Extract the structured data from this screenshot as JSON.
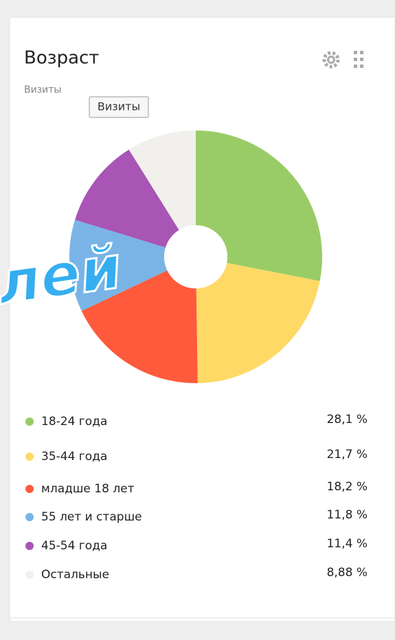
{
  "chart_data": {
    "type": "pie",
    "title": "Возраст",
    "subtitle": "Визиты",
    "tooltip": "Визиты",
    "annotation": "лей",
    "categories": [
      "18-24 года",
      "35-44 года",
      "младше 18 лет",
      "55 лет и старше",
      "45-54 года",
      "Остальные"
    ],
    "values": [
      28.1,
      21.7,
      18.2,
      11.8,
      11.4,
      8.88
    ],
    "value_labels": [
      "28,1 %",
      "21,7 %",
      "18,2 %",
      "11,8 %",
      "11,4 %",
      "8,88 %"
    ],
    "colors": [
      "#99cc66",
      "#ffd966",
      "#ff5a3c",
      "#7ab4e6",
      "#a855b5",
      "#f2f0ed"
    ]
  }
}
